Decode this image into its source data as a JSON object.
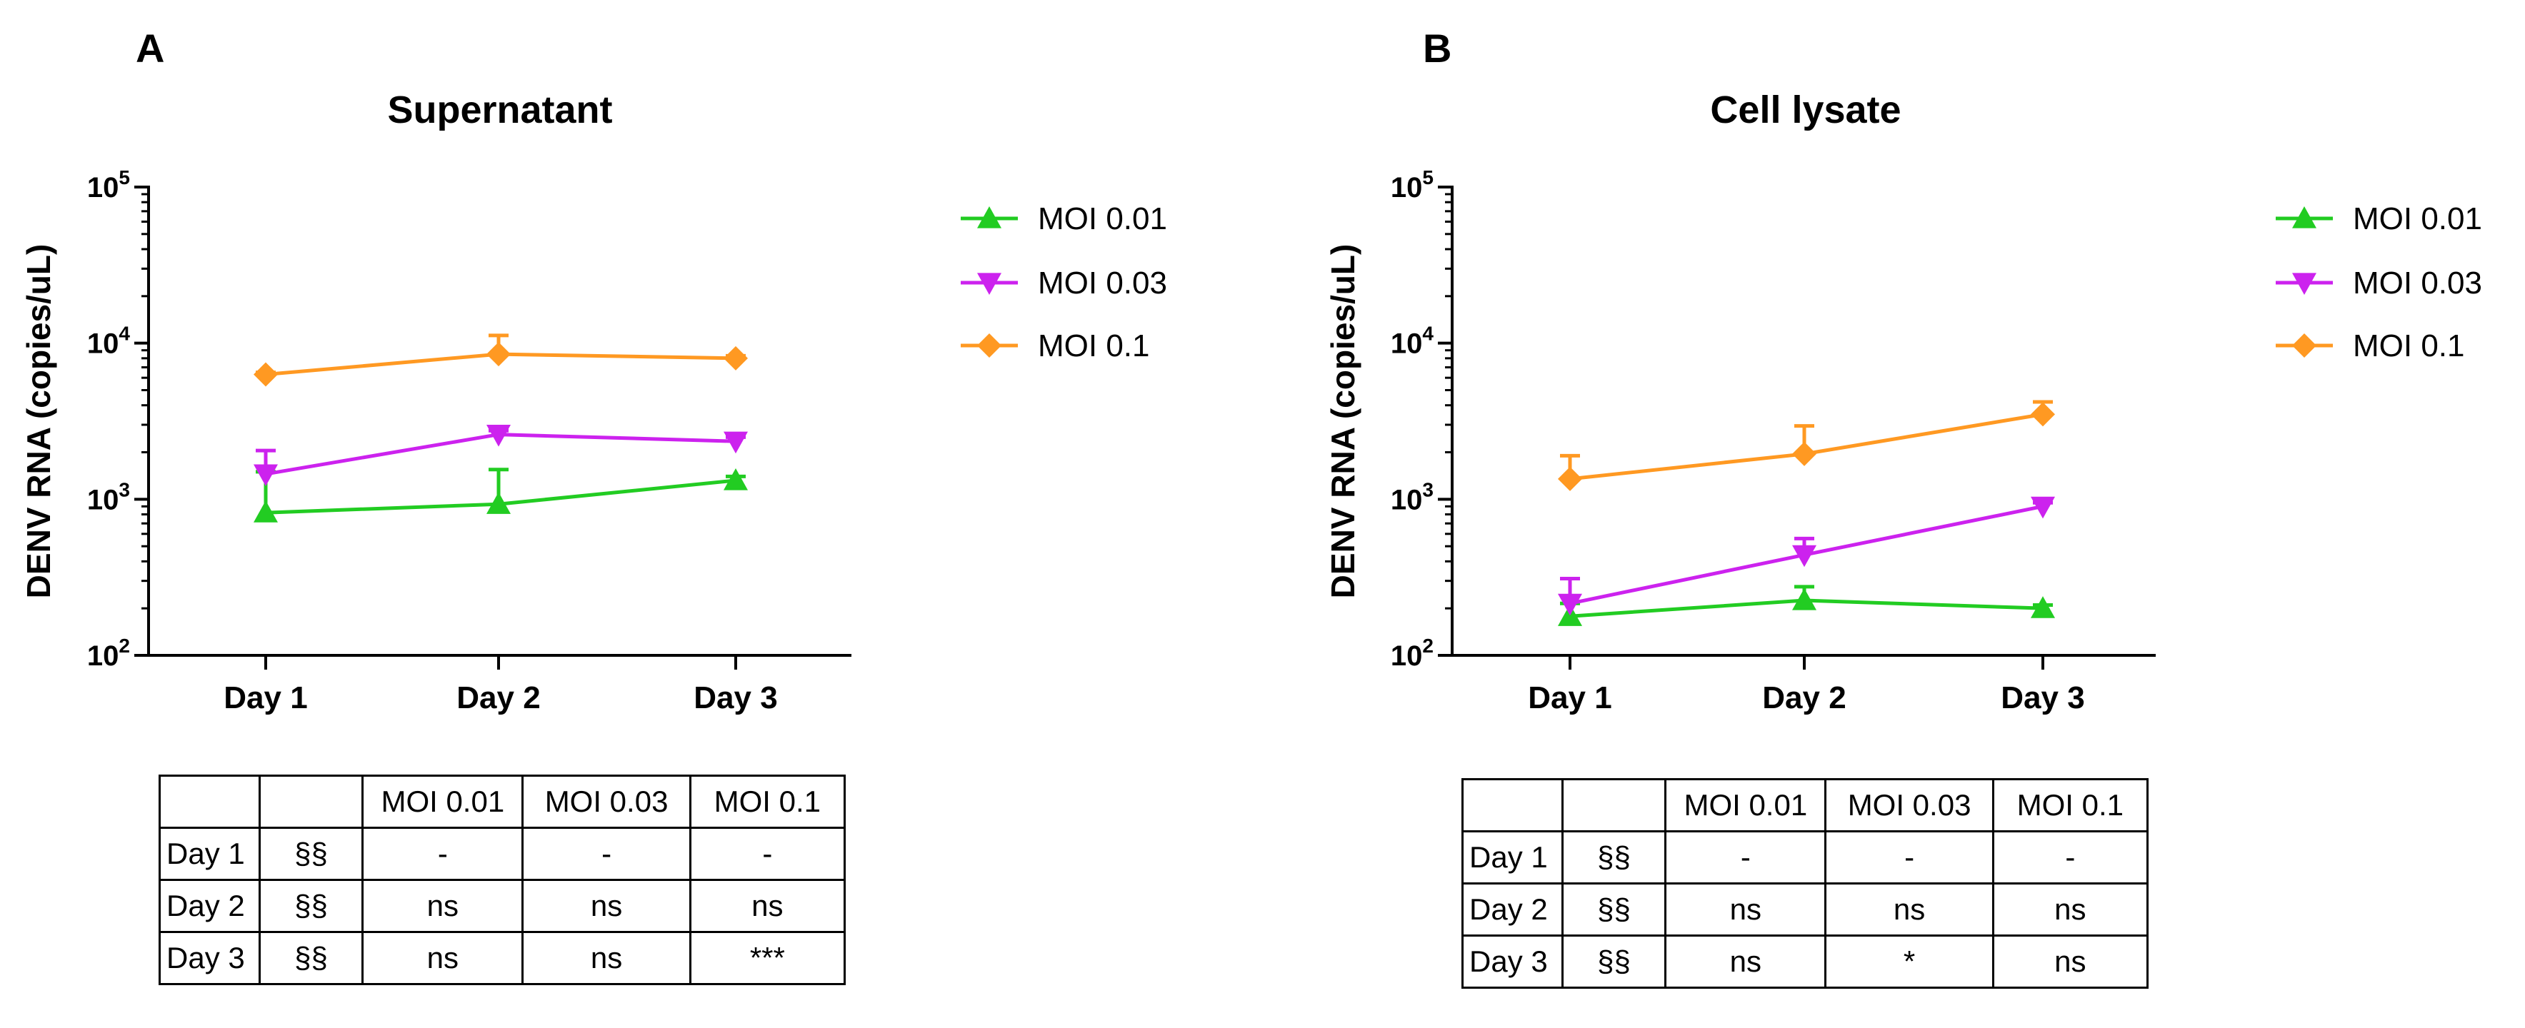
{
  "chart_data": [
    {
      "type": "line",
      "panel_label": "A",
      "title": "Supernatant",
      "xlabel": "",
      "ylabel": "DENV RNA (copies/uL)",
      "yscale": "log",
      "ylim": [
        100,
        100000
      ],
      "y_ticks": [
        {
          "value": 100,
          "base": "10",
          "exp": "2"
        },
        {
          "value": 1000,
          "base": "10",
          "exp": "3"
        },
        {
          "value": 10000,
          "base": "10",
          "exp": "4"
        },
        {
          "value": 100000,
          "base": "10",
          "exp": "5"
        }
      ],
      "categories": [
        "Day 1",
        "Day 2",
        "Day 3"
      ],
      "series": [
        {
          "name": "MOI 0.01",
          "color": "#22cc22",
          "marker": "triangle-up",
          "values": [
            820,
            930,
            1320
          ],
          "error_upper": [
            1500,
            1550,
            1400
          ]
        },
        {
          "name": "MOI 0.03",
          "color": "#cc22ee",
          "marker": "triangle-down",
          "values": [
            1450,
            2600,
            2350
          ],
          "error_upper": [
            2050,
            2750,
            2500
          ]
        },
        {
          "name": "MOI 0.1",
          "color": "#ff9922",
          "marker": "diamond",
          "values": [
            6300,
            8500,
            8000
          ],
          "error_upper": [
            6500,
            11200,
            8300
          ]
        }
      ],
      "legend_position": "right",
      "stats_table": {
        "header": [
          "",
          "",
          "MOI 0.01",
          "MOI 0.03",
          "MOI 0.1"
        ],
        "rows": [
          [
            "Day 1",
            "§§",
            "-",
            "-",
            "-"
          ],
          [
            "Day 2",
            "§§",
            "ns",
            "ns",
            "ns"
          ],
          [
            "Day 3",
            "§§",
            "ns",
            "ns",
            "***"
          ]
        ]
      }
    },
    {
      "type": "line",
      "panel_label": "B",
      "title": "Cell lysate",
      "xlabel": "",
      "ylabel": "DENV RNA (copies/uL)",
      "yscale": "log",
      "ylim": [
        100,
        100000
      ],
      "y_ticks": [
        {
          "value": 100,
          "base": "10",
          "exp": "2"
        },
        {
          "value": 1000,
          "base": "10",
          "exp": "3"
        },
        {
          "value": 10000,
          "base": "10",
          "exp": "4"
        },
        {
          "value": 100000,
          "base": "10",
          "exp": "5"
        }
      ],
      "categories": [
        "Day 1",
        "Day 2",
        "Day 3"
      ],
      "series": [
        {
          "name": "MOI 0.01",
          "color": "#22cc22",
          "marker": "triangle-up",
          "values": [
            178,
            225,
            200
          ],
          "error_upper": [
            215,
            275,
            210
          ]
        },
        {
          "name": "MOI 0.03",
          "color": "#cc22ee",
          "marker": "triangle-down",
          "values": [
            215,
            440,
            900
          ],
          "error_upper": [
            310,
            560,
            950
          ]
        },
        {
          "name": "MOI 0.1",
          "color": "#ff9922",
          "marker": "diamond",
          "values": [
            1350,
            1950,
            3500
          ],
          "error_upper": [
            1900,
            2950,
            4200
          ]
        }
      ],
      "legend_position": "right",
      "stats_table": {
        "header": [
          "",
          "",
          "MOI 0.01",
          "MOI 0.03",
          "MOI 0.1"
        ],
        "rows": [
          [
            "Day 1",
            "§§",
            "-",
            "-",
            "-"
          ],
          [
            "Day 2",
            "§§",
            "ns",
            "ns",
            "ns"
          ],
          [
            "Day 3",
            "§§",
            "ns",
            "*",
            "ns"
          ]
        ]
      }
    }
  ]
}
